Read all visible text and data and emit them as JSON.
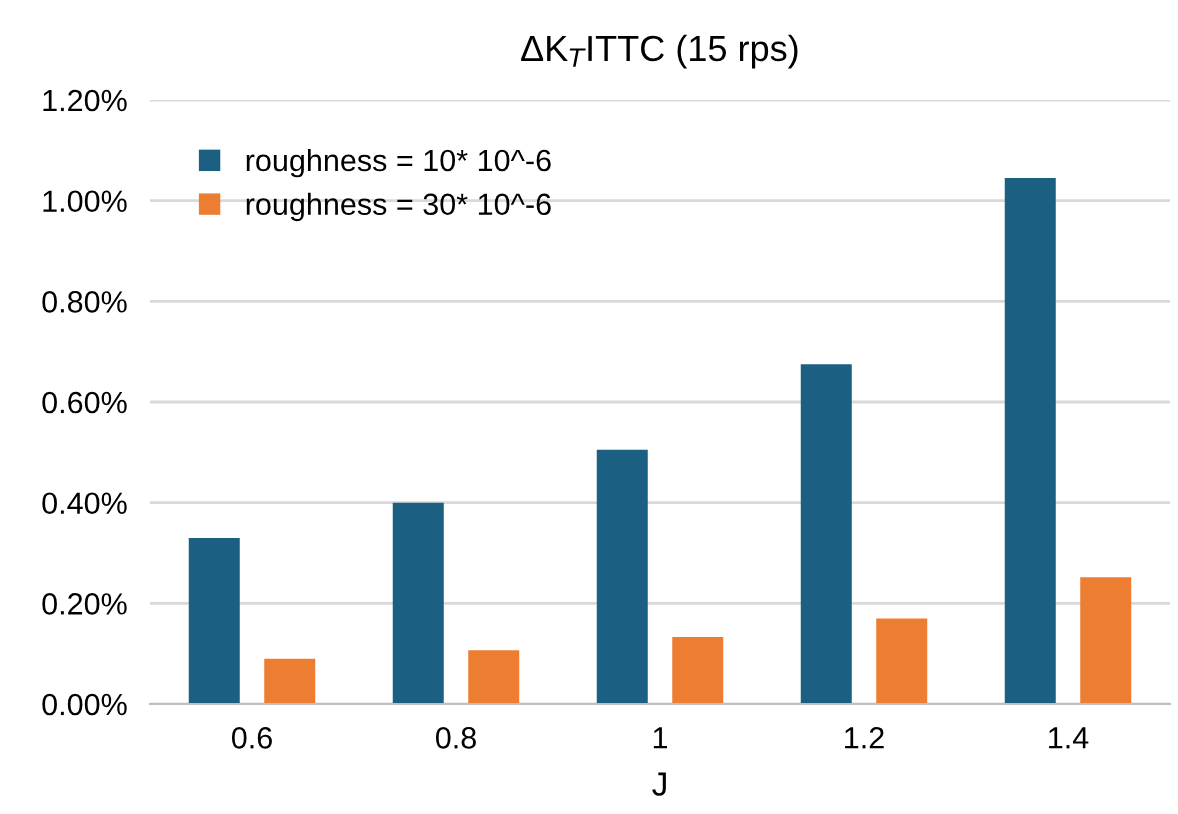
{
  "chart_data": {
    "type": "bar",
    "title": "ΔK$_{T}$ITTC (15 rps)",
    "xlabel": "J",
    "categories": [
      "0.6",
      "0.8",
      "1",
      "1.2",
      "1.4"
    ],
    "series": [
      {
        "name": "roughness = 10* 10^-6",
        "color": "#1b5f82",
        "values": [
          0.33,
          0.4,
          0.505,
          0.675,
          1.045
        ]
      },
      {
        "name": "roughness = 30* 10^-6",
        "color": "#ed7d31",
        "values": [
          0.09,
          0.107,
          0.133,
          0.17,
          0.252
        ]
      }
    ],
    "ylim": [
      0,
      1.2
    ],
    "yticks": [
      {
        "value": 0,
        "label": "0.00%"
      },
      {
        "value": 0.2,
        "label": "0.20%"
      },
      {
        "value": 0.4,
        "label": "0.40%"
      },
      {
        "value": 0.6,
        "label": "0.60%"
      },
      {
        "value": 0.8,
        "label": "0.80%"
      },
      {
        "value": 1.0,
        "label": "1.00%"
      },
      {
        "value": 1.2,
        "label": "1.20%"
      }
    ],
    "grid": "y",
    "legend": "top left"
  }
}
